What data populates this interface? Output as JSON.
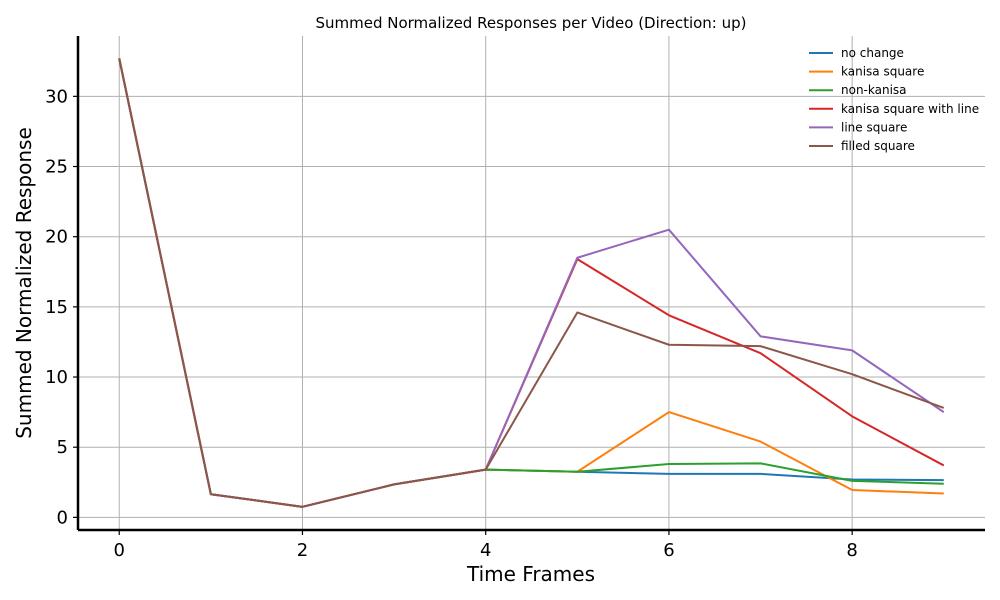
{
  "chart_data": {
    "type": "line",
    "title": "Summed Normalized Responses per Video (Direction: up)",
    "xlabel": "Time Frames",
    "ylabel": "Summed Normalized Response",
    "x": [
      0,
      1,
      2,
      3,
      4,
      5,
      6,
      7,
      8,
      9
    ],
    "xlim": [
      -0.45,
      9.45
    ],
    "ylim": [
      -0.9,
      34.3
    ],
    "xticks": [
      0,
      2,
      4,
      6,
      8
    ],
    "yticks": [
      0,
      5,
      10,
      15,
      20,
      25,
      30
    ],
    "grid": true,
    "legend_position": "top-right",
    "series": [
      {
        "name": "no change",
        "color": "#1f77b4",
        "values": [
          32.7,
          1.65,
          0.75,
          2.35,
          3.4,
          3.25,
          3.1,
          3.1,
          2.7,
          2.65
        ]
      },
      {
        "name": "kanisa square",
        "color": "#ff7f0e",
        "values": [
          32.7,
          1.65,
          0.75,
          2.35,
          3.4,
          3.25,
          7.5,
          5.4,
          1.95,
          1.7
        ]
      },
      {
        "name": "non-kanisa",
        "color": "#2ca02c",
        "values": [
          32.7,
          1.65,
          0.75,
          2.35,
          3.4,
          3.25,
          3.8,
          3.85,
          2.6,
          2.4
        ]
      },
      {
        "name": "kanisa square with line",
        "color": "#d62728",
        "values": [
          32.7,
          1.65,
          0.75,
          2.35,
          3.4,
          18.4,
          14.4,
          11.7,
          7.2,
          3.7
        ]
      },
      {
        "name": "line square",
        "color": "#9467bd",
        "values": [
          32.7,
          1.65,
          0.75,
          2.35,
          3.4,
          18.5,
          20.5,
          12.9,
          11.9,
          7.5
        ]
      },
      {
        "name": "filled square",
        "color": "#8c564b",
        "values": [
          32.7,
          1.65,
          0.75,
          2.35,
          3.4,
          14.6,
          12.3,
          12.2,
          10.2,
          7.8
        ]
      }
    ]
  }
}
